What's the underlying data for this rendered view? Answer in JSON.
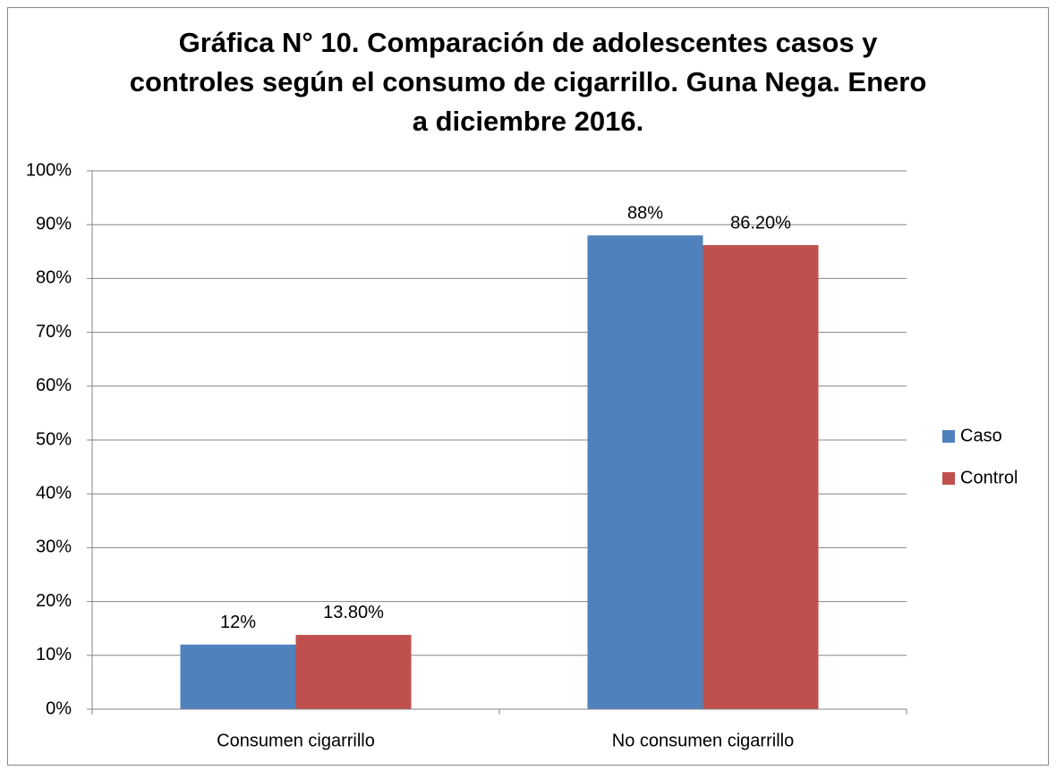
{
  "chart_data": {
    "type": "bar",
    "title": "Gráfica N° 10. Comparación de adolescentes casos y controles según el consumo de cigarrillo. Guna Nega. Enero a diciembre 2016.",
    "categories": [
      "Consumen cigarrillo",
      "No consumen cigarrillo"
    ],
    "series": [
      {
        "name": "Caso",
        "color": "#4f81bd",
        "values": [
          12,
          88
        ],
        "value_labels": [
          "12%",
          "88%"
        ]
      },
      {
        "name": "Control",
        "color": "#c0504d",
        "values": [
          13.8,
          86.2
        ],
        "value_labels": [
          "13.80%",
          "86.20%"
        ]
      }
    ],
    "value_label_colors": [
      "#000000",
      "#ff0000"
    ],
    "ylim": [
      0,
      100
    ],
    "yticks": [
      {
        "value": 0,
        "label": "0%"
      },
      {
        "value": 10,
        "label": "10%"
      },
      {
        "value": 20,
        "label": "20%"
      },
      {
        "value": 30,
        "label": "30%"
      },
      {
        "value": 40,
        "label": "40%"
      },
      {
        "value": 50,
        "label": "50%"
      },
      {
        "value": 60,
        "label": "60%"
      },
      {
        "value": 70,
        "label": "70%"
      },
      {
        "value": 80,
        "label": "80%"
      },
      {
        "value": 90,
        "label": "90%"
      },
      {
        "value": 100,
        "label": "100%"
      }
    ],
    "grid": true,
    "legend": "right"
  }
}
